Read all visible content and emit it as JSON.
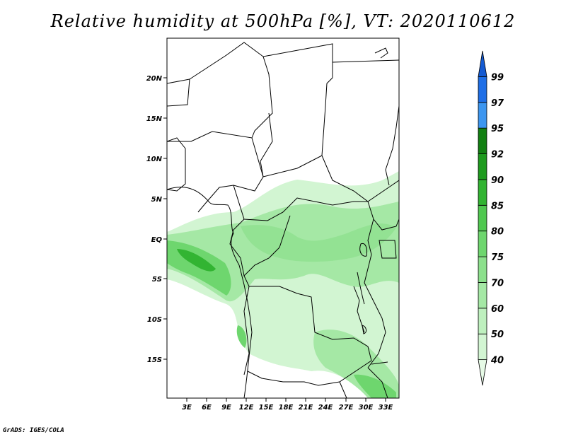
{
  "title": "Relative humidity at 500hPa [%], VT: 2020110612",
  "footer": "GrADS: IGES/COLA",
  "map": {
    "lat_labels": [
      "20N",
      "15N",
      "10N",
      "5N",
      "EQ",
      "5S",
      "10S",
      "15S"
    ],
    "lon_labels": [
      "3E",
      "6E",
      "9E",
      "12E",
      "15E",
      "18E",
      "21E",
      "24E",
      "27E",
      "30E",
      "33E"
    ]
  },
  "colorbar": {
    "levels": [
      "40",
      "50",
      "60",
      "70",
      "75",
      "80",
      "85",
      "90",
      "92",
      "95",
      "97",
      "99"
    ],
    "colors": [
      "#e6fae6",
      "#d2f5d2",
      "#bef0be",
      "#a5e8a5",
      "#8ce08c",
      "#6ed66e",
      "#50c850",
      "#32b432",
      "#1e9b1e",
      "#128012",
      "#3c96f0",
      "#1e6ee6",
      "#145ad2"
    ]
  }
}
